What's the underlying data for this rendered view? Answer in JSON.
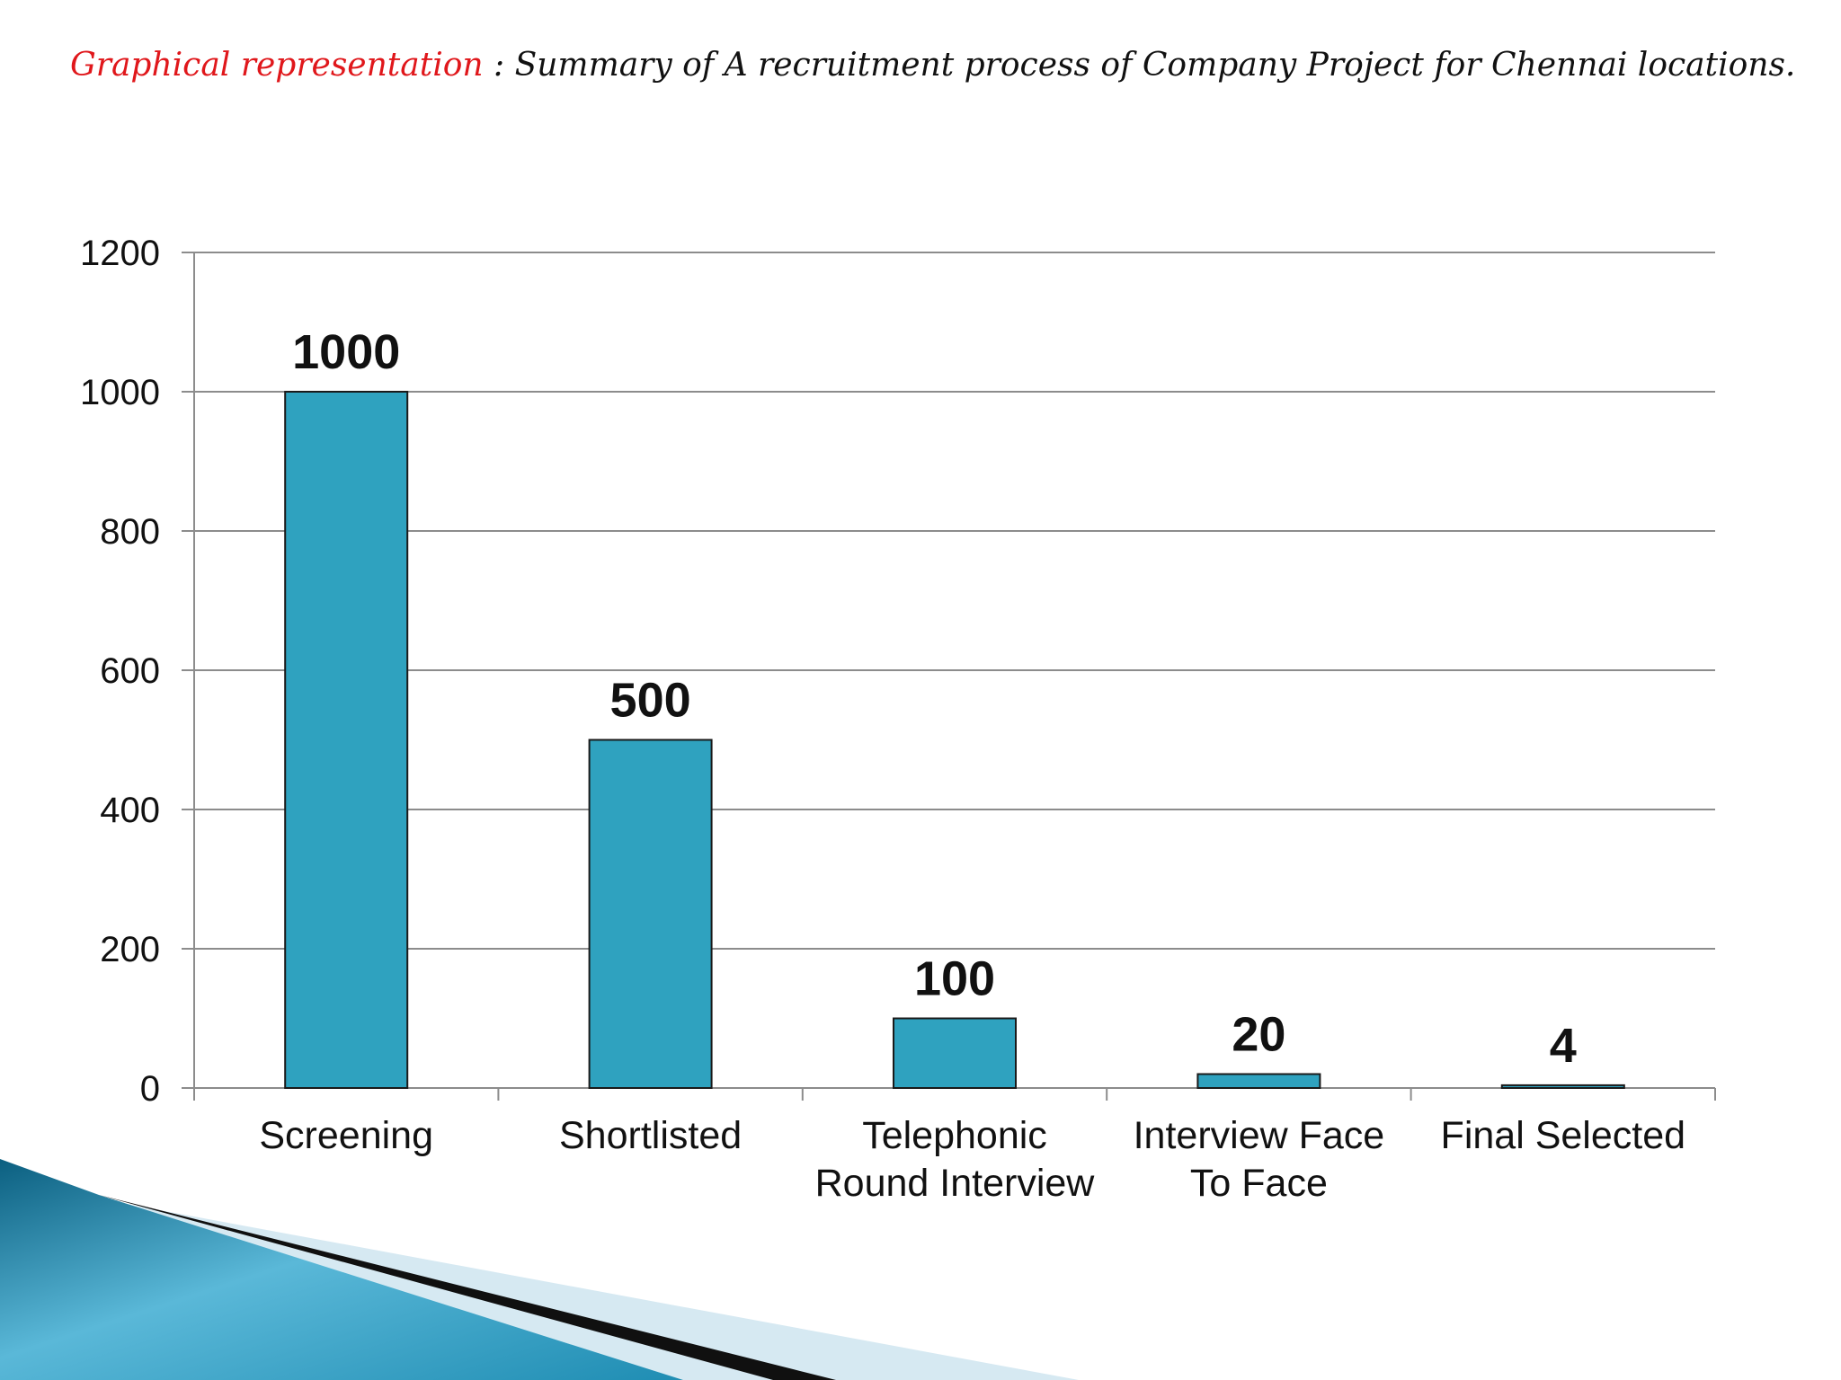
{
  "slide": {
    "title_lead": "Graphical representation",
    "title_separator": " :  ",
    "title_rest": "Summary of A recruitment process of  Company Project for Chennai locations."
  },
  "colors": {
    "bar": "#2fa2bf",
    "bar_outline": "#1a1a1a",
    "grid": "#8c8c8c",
    "title_lead": "#e0171b",
    "decor_teal": "#1f8db3",
    "decor_light": "#cfe6f0"
  },
  "chart_data": {
    "type": "bar",
    "categories": [
      [
        "Screening"
      ],
      [
        "Shortlisted"
      ],
      [
        "Telephonic",
        "Round Interview"
      ],
      [
        "Interview Face",
        "To Face"
      ],
      [
        "Final Selected"
      ]
    ],
    "values": [
      1000,
      500,
      100,
      20,
      4
    ],
    "data_labels": [
      "1000",
      "500",
      "100",
      "20",
      "4"
    ],
    "yticks": [
      0,
      200,
      400,
      600,
      800,
      1000,
      1200
    ],
    "ylim": [
      0,
      1200
    ],
    "grid": true,
    "legend": "none"
  }
}
